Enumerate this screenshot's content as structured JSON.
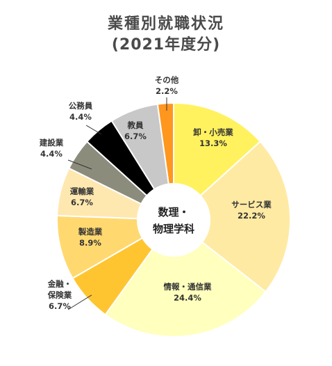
{
  "chart_data": {
    "type": "pie",
    "title": "業種別就職状況",
    "subtitle": "(2021年度分)",
    "center_label": [
      "数理・",
      "物理学科"
    ],
    "unit": "%",
    "slices": [
      {
        "label": [
          "卸・小売業"
        ],
        "value": 13.3,
        "value_text": "13.3%",
        "color": "#fff25e",
        "stroke": "#ffffff",
        "label_placement": "inside"
      },
      {
        "label": [
          "サービス業"
        ],
        "value": 22.2,
        "value_text": "22.2%",
        "color": "#ffeaa3",
        "stroke": "#ffffff",
        "label_placement": "inside"
      },
      {
        "label": [
          "情報・通信業"
        ],
        "value": 24.4,
        "value_text": "24.4%",
        "color": "#ffffbe",
        "stroke": "#ffffff",
        "label_placement": "inside"
      },
      {
        "label": [
          "金融・",
          "保険業"
        ],
        "value": 6.7,
        "value_text": "6.7%",
        "color": "#ffc531",
        "stroke": "#ffffff",
        "label_placement": "outside-left"
      },
      {
        "label": [
          "製造業"
        ],
        "value": 8.9,
        "value_text": "8.9%",
        "color": "#ffd970",
        "stroke": "#ffffff",
        "label_placement": "inside"
      },
      {
        "label": [
          "運輸業"
        ],
        "value": 6.7,
        "value_text": "6.7%",
        "color": "#ffe8b0",
        "stroke": "#ffffff",
        "label_placement": "inside"
      },
      {
        "label": [
          "建設業"
        ],
        "value": 4.4,
        "value_text": "4.4%",
        "color": "#8c8c7c",
        "stroke": "#ffffff",
        "label_placement": "outside-left"
      },
      {
        "label": [
          "公務員"
        ],
        "value": 4.4,
        "value_text": "4.4%",
        "color": "#000000",
        "stroke": "#ffffff",
        "label_placement": "outside-left"
      },
      {
        "label": [
          "教員"
        ],
        "value": 6.7,
        "value_text": "6.7%",
        "color": "#c8c8c8",
        "stroke": "#ffffff",
        "label_placement": "inside"
      },
      {
        "label": [
          "その他"
        ],
        "value": 2.2,
        "value_text": "2.2%",
        "color": "#ff961e",
        "stroke": "#ffffff",
        "label_placement": "outside-top"
      }
    ]
  }
}
